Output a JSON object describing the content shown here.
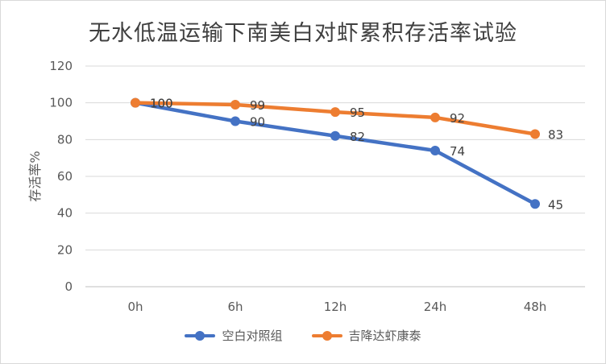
{
  "chart_data": {
    "type": "line",
    "title": "无水低温运输下南美白对虾累积存活率试验",
    "xlabel": "",
    "ylabel": "存活率%",
    "categories": [
      "0h",
      "6h",
      "12h",
      "24h",
      "48h"
    ],
    "ylim": [
      0,
      120
    ],
    "yticks": [
      0,
      20,
      40,
      60,
      80,
      100,
      120
    ],
    "grid": true,
    "legend_position": "bottom",
    "series": [
      {
        "name": "空白对照组",
        "color": "#4472C4",
        "values": [
          100,
          90,
          82,
          74,
          45
        ]
      },
      {
        "name": "吉降达虾康泰",
        "color": "#ED7D31",
        "values": [
          100,
          99,
          95,
          92,
          83
        ]
      }
    ]
  }
}
